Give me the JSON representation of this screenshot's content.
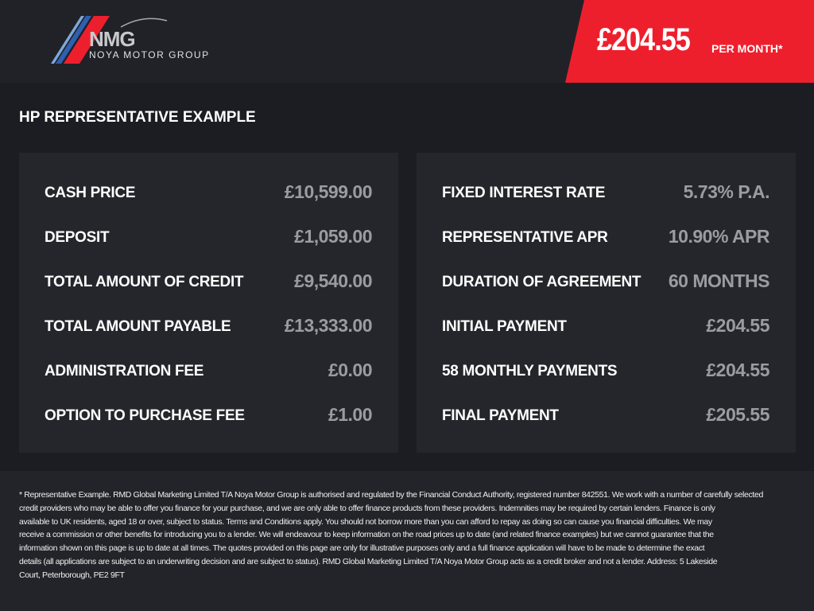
{
  "header": {
    "logo": {
      "text": "NMG",
      "subtitle": "NOYA MOTOR GROUP"
    },
    "price": "£204.55",
    "per_month": "PER MONTH*",
    "accent_color": "#ee1f2d"
  },
  "title": "HP REPRESENTATIVE EXAMPLE",
  "left_panel": [
    {
      "label": "CASH PRICE",
      "value": "£10,599.00"
    },
    {
      "label": "DEPOSIT",
      "value": "£1,059.00"
    },
    {
      "label": "TOTAL AMOUNT OF CREDIT",
      "value": "£9,540.00"
    },
    {
      "label": "TOTAL AMOUNT PAYABLE",
      "value": "£13,333.00"
    },
    {
      "label": "ADMINISTRATION FEE",
      "value": "£0.00"
    },
    {
      "label": "OPTION TO PURCHASE FEE",
      "value": "£1.00"
    }
  ],
  "right_panel": [
    {
      "label": "FIXED INTEREST RATE",
      "value": "5.73% P.A."
    },
    {
      "label": "REPRESENTATIVE APR",
      "value": "10.90% APR"
    },
    {
      "label": "DURATION OF AGREEMENT",
      "value": "60 MONTHS"
    },
    {
      "label": "INITIAL PAYMENT",
      "value": "£204.55"
    },
    {
      "label": "58 MONTHLY PAYMENTS",
      "value": "£204.55"
    },
    {
      "label": "FINAL PAYMENT",
      "value": "£205.55"
    }
  ],
  "footer": {
    "lines": [
      "* Representative Example. RMD Global Marketing Limited T/A Noya Motor Group is authorised and regulated by the Financial Conduct Authority, registered number 842551. We work with a number of carefully selected",
      "credit providers who may be able to offer you finance for your purchase, and we are only able to offer finance products from these providers. Indemnities may be required by certain lenders. Finance is only",
      "available to UK residents, aged 18 or over, subject to status. Terms and Conditions apply. You should not borrow more than you can afford to repay as doing so can cause you financial difficulties. We may",
      "receive a commission or other benefits for introducing you to a lender. We will endeavour to keep information on the road prices up to date (and related finance examples) but we cannot guarantee that the",
      "information shown on this page is up to date at all times. The quotes provided on this page are only for illustrative purposes only and a full finance application will have to be made to determine the exact",
      "details (all applications are subject to an underwriting decision and are subject to status). RMD Global Marketing Limited T/A Noya Motor Group acts as a credit broker and not a lender. Address: 5 Lakeside",
      "Court, Peterborough, PE2 9FT"
    ]
  }
}
